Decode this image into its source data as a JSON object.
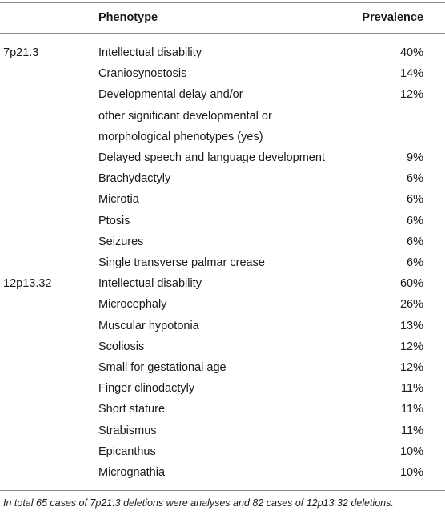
{
  "table": {
    "headers": {
      "location": "",
      "phenotype": "Phenotype",
      "prevalence": "Prevalence"
    },
    "rows": [
      {
        "location": "7p21.3",
        "phenotype": "Intellectual disability",
        "prevalence": "40%"
      },
      {
        "location": "",
        "phenotype": "Craniosynostosis",
        "prevalence": "14%"
      },
      {
        "location": "",
        "phenotype": "Developmental delay and/or",
        "prevalence": "12%"
      },
      {
        "location": "",
        "phenotype": "other significant developmental or",
        "prevalence": ""
      },
      {
        "location": "",
        "phenotype": "morphological phenotypes (yes)",
        "prevalence": ""
      },
      {
        "location": "",
        "phenotype": "Delayed speech and language development",
        "prevalence": "9%"
      },
      {
        "location": "",
        "phenotype": "Brachydactyly",
        "prevalence": "6%"
      },
      {
        "location": "",
        "phenotype": "Microtia",
        "prevalence": "6%"
      },
      {
        "location": "",
        "phenotype": "Ptosis",
        "prevalence": "6%"
      },
      {
        "location": "",
        "phenotype": "Seizures",
        "prevalence": "6%"
      },
      {
        "location": "",
        "phenotype": "Single transverse palmar crease",
        "prevalence": "6%"
      },
      {
        "location": "12p13.32",
        "phenotype": "Intellectual disability",
        "prevalence": "60%"
      },
      {
        "location": "",
        "phenotype": "Microcephaly",
        "prevalence": "26%"
      },
      {
        "location": "",
        "phenotype": "Muscular hypotonia",
        "prevalence": "13%"
      },
      {
        "location": "",
        "phenotype": "Scoliosis",
        "prevalence": "12%"
      },
      {
        "location": "",
        "phenotype": "Small for gestational age",
        "prevalence": "12%"
      },
      {
        "location": "",
        "phenotype": "Finger clinodactyly",
        "prevalence": "11%"
      },
      {
        "location": "",
        "phenotype": "Short stature",
        "prevalence": "11%"
      },
      {
        "location": "",
        "phenotype": "Strabismus",
        "prevalence": "11%"
      },
      {
        "location": "",
        "phenotype": "Epicanthus",
        "prevalence": "10%"
      },
      {
        "location": "",
        "phenotype": "Micrognathia",
        "prevalence": "10%"
      }
    ]
  },
  "footnote": "In total 65 cases of 7p21.3 deletions were analyses and 82 cases of 12p13.32 deletions."
}
